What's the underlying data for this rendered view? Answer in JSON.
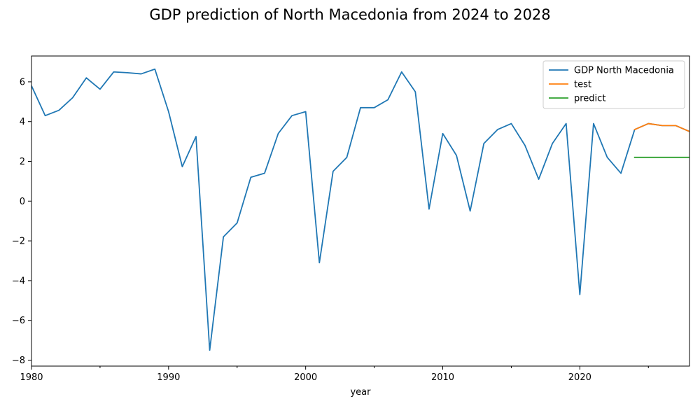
{
  "chart_data": {
    "type": "line",
    "title": "GDP prediction of North Macedonia from 2024 to 2028",
    "xlabel": "year",
    "ylabel": "",
    "xlim": [
      1980,
      2028
    ],
    "ylim": [
      -8.3,
      7.3
    ],
    "x_ticks": [
      1980,
      1990,
      2000,
      2010,
      2020
    ],
    "x_minor_ticks": [
      1985,
      1995,
      2005,
      2015,
      2025
    ],
    "y_ticks": [
      -8,
      -6,
      -4,
      -2,
      0,
      2,
      4,
      6
    ],
    "grid": false,
    "legend_position": "top-right",
    "series": [
      {
        "name": "GDP North Macedonia",
        "color": "#1f77b4",
        "x": [
          1980,
          1981,
          1982,
          1983,
          1984,
          1985,
          1986,
          1987,
          1988,
          1989,
          1990,
          1991,
          1992,
          1993,
          1994,
          1995,
          1996,
          1997,
          1998,
          1999,
          2000,
          2001,
          2002,
          2003,
          2004,
          2005,
          2006,
          2007,
          2008,
          2009,
          2010,
          2011,
          2012,
          2013,
          2014,
          2015,
          2016,
          2017,
          2018,
          2019,
          2020,
          2021,
          2022,
          2023,
          2024,
          2025,
          2026,
          2027,
          2028
        ],
        "y": [
          5.8,
          4.3,
          4.57,
          5.2,
          6.2,
          5.63,
          6.5,
          6.46,
          6.4,
          6.64,
          4.5,
          1.73,
          3.25,
          -7.5,
          -1.8,
          -1.1,
          1.2,
          1.4,
          3.4,
          4.3,
          4.5,
          -3.1,
          1.5,
          2.2,
          4.7,
          4.7,
          5.1,
          6.5,
          5.5,
          -0.4,
          3.4,
          2.3,
          -0.5,
          2.9,
          3.6,
          3.9,
          2.8,
          1.1,
          2.9,
          3.9,
          -4.7,
          3.9,
          2.2,
          1.4,
          3.6,
          3.9,
          3.8,
          3.8,
          3.5
        ]
      },
      {
        "name": "test",
        "color": "#ff7f0e",
        "x": [
          2024,
          2025,
          2026,
          2027,
          2028
        ],
        "y": [
          3.6,
          3.9,
          3.8,
          3.8,
          3.5
        ]
      },
      {
        "name": "predict",
        "color": "#2ca02c",
        "x": [
          2024,
          2025,
          2026,
          2027,
          2028
        ],
        "y": [
          2.2,
          2.2,
          2.2,
          2.2,
          2.2
        ]
      }
    ]
  }
}
